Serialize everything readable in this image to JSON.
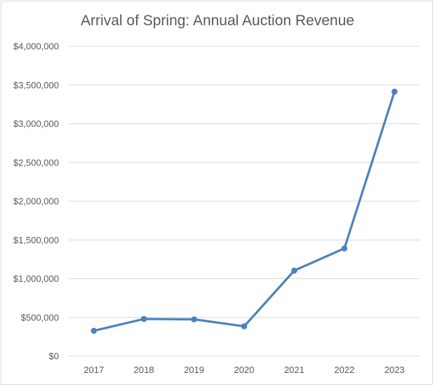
{
  "chart_data": {
    "type": "line",
    "title": "Arrival of Spring: Annual Auction Revenue",
    "xlabel": "",
    "ylabel": "",
    "categories": [
      "2017",
      "2018",
      "2019",
      "2020",
      "2021",
      "2022",
      "2023"
    ],
    "values": [
      328000,
      480000,
      475000,
      385000,
      1105000,
      1391000,
      3415000
    ],
    "ylim": [
      0,
      4000000
    ],
    "yticks": [
      0,
      500000,
      1000000,
      1500000,
      2000000,
      2500000,
      3000000,
      3500000,
      4000000
    ],
    "ytick_labels": [
      "$0",
      "$500,000",
      "$1,000,000",
      "$1,500,000",
      "$2,000,000",
      "$2,500,000",
      "$3,000,000",
      "$3,500,000",
      "$4,000,000"
    ],
    "grid": true,
    "legend": "none",
    "markers": true,
    "series_color": "#4f81bd",
    "grid_color": "#d9d9d9"
  }
}
